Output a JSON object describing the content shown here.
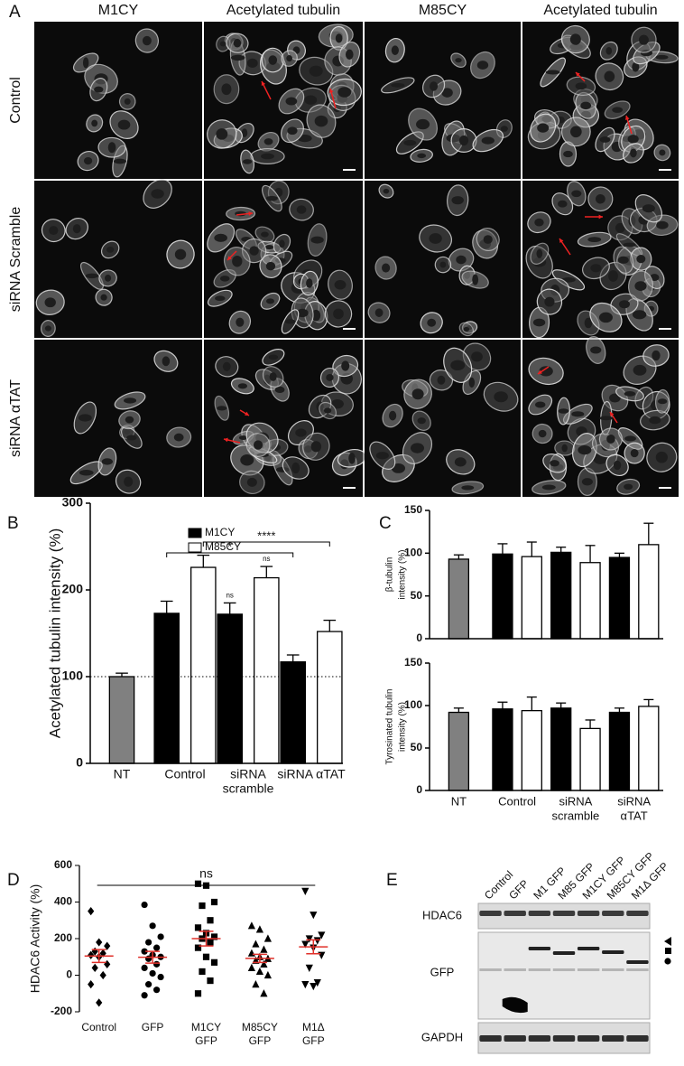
{
  "panel_labels": [
    "A",
    "B",
    "C",
    "D",
    "E"
  ],
  "panel_a": {
    "column_headers": [
      "M1CY",
      "Acetylated tubulin",
      "M85CY",
      "Acetylated tubulin"
    ],
    "row_labels": [
      "Control",
      "siRNA Scramble",
      "siRNA αTAT"
    ]
  },
  "chart_data": [
    {
      "type": "bar",
      "ylabel": [
        "Acetylated tubulin intensity (%)"
      ],
      "ylim": [
        0,
        300
      ],
      "yticks": [
        0,
        100,
        200,
        300
      ],
      "categories": [
        [
          "NT"
        ],
        [
          "Control"
        ],
        [
          "siRNA",
          "scramble"
        ],
        [
          "siRNA αTAT"
        ]
      ],
      "series": [
        {
          "color": "#808080",
          "values": [
            100,
            null,
            null,
            null
          ],
          "errors": [
            4,
            null,
            null,
            null
          ]
        },
        {
          "name": "M1CY",
          "color": "#000000",
          "values": [
            null,
            173,
            172,
            117
          ],
          "errors": [
            null,
            14,
            13,
            8
          ]
        },
        {
          "name": "M85CY",
          "color": "#ffffff",
          "values": [
            null,
            226,
            214,
            152
          ],
          "errors": [
            null,
            14,
            13,
            13
          ]
        }
      ],
      "reference_line": 100,
      "brackets": [
        {
          "label": "*",
          "series": 1,
          "from": 1,
          "to": 3
        },
        {
          "label": "****",
          "series": 2,
          "from": 1,
          "to": 3
        }
      ],
      "point_labels": [
        {
          "label": "ns",
          "series": 1,
          "index": 2
        },
        {
          "label": "ns",
          "series": 2,
          "index": 2
        }
      ]
    },
    {
      "type": "bar",
      "ylabel": [
        "β-tubulin",
        "intensity (%)"
      ],
      "ylim": [
        0,
        150
      ],
      "yticks": [
        0,
        50,
        100,
        150
      ],
      "series": [
        {
          "color": "#808080",
          "values": [
            93,
            null,
            null,
            null
          ],
          "errors": [
            5,
            null,
            null,
            null
          ]
        },
        {
          "color": "#000000",
          "values": [
            null,
            99,
            101,
            95
          ],
          "errors": [
            null,
            12,
            6,
            5
          ]
        },
        {
          "color": "#ffffff",
          "values": [
            null,
            96,
            89,
            110
          ],
          "errors": [
            null,
            17,
            20,
            25
          ]
        }
      ]
    },
    {
      "type": "bar",
      "ylabel": [
        "Tyrosinated tubulin",
        "intensity (%)"
      ],
      "ylim": [
        0,
        150
      ],
      "yticks": [
        0,
        50,
        100,
        150
      ],
      "categories": [
        [
          "NT"
        ],
        [
          "Control"
        ],
        [
          "siRNA",
          "scramble"
        ],
        [
          "siRNA",
          "αTAT"
        ]
      ],
      "series": [
        {
          "color": "#808080",
          "values": [
            92,
            null,
            null,
            null
          ],
          "errors": [
            5,
            null,
            null,
            null
          ]
        },
        {
          "color": "#000000",
          "values": [
            null,
            96,
            97,
            92
          ],
          "errors": [
            null,
            8,
            6,
            5
          ]
        },
        {
          "color": "#ffffff",
          "values": [
            null,
            94,
            73,
            99
          ],
          "errors": [
            null,
            16,
            10,
            8
          ]
        }
      ]
    },
    {
      "type": "strip",
      "ylabel": [
        "HDAC6 Activity (%)"
      ],
      "ylim": [
        -200,
        600
      ],
      "yticks": [
        -200,
        0,
        200,
        400,
        600
      ],
      "categories": [
        [
          "Control"
        ],
        [
          "GFP"
        ],
        [
          "M1CY",
          "GFP"
        ],
        [
          "M85CY",
          "GFP"
        ],
        [
          "M1Δ",
          "GFP"
        ]
      ],
      "markers": [
        "diamond",
        "circle",
        "square",
        "triangle",
        "triangle-down"
      ],
      "values": [
        [
          350,
          180,
          160,
          130,
          120,
          110,
          100,
          60,
          40,
          0,
          -50,
          -150
        ],
        [
          385,
          270,
          210,
          180,
          150,
          130,
          110,
          100,
          90,
          60,
          40,
          10,
          -10,
          -50,
          -80,
          -110
        ],
        [
          500,
          490,
          400,
          380,
          300,
          260,
          230,
          210,
          200,
          180,
          150,
          100,
          70,
          20,
          -30,
          -100
        ],
        [
          270,
          250,
          200,
          170,
          140,
          120,
          100,
          90,
          80,
          60,
          40,
          20,
          0,
          -50,
          -100
        ],
        [
          460,
          330,
          220,
          200,
          190,
          170,
          150,
          110,
          40,
          -40,
          -50,
          -60
        ]
      ],
      "means": [
        105,
        98,
        200,
        92,
        155
      ],
      "sems": [
        35,
        32,
        40,
        22,
        38
      ],
      "mean_color": "#e0302a",
      "bracket": {
        "label": "ns",
        "from": 0,
        "to": 4
      }
    }
  ],
  "panel_e": {
    "lane_labels": [
      "Control",
      "GFP",
      "M1 GFP",
      "M85 GFP",
      "M1CY GFP",
      "M85CY GFP",
      "M1Δ GFP"
    ],
    "row_labels": [
      "HDAC6",
      "GFP",
      "GAPDH"
    ]
  }
}
